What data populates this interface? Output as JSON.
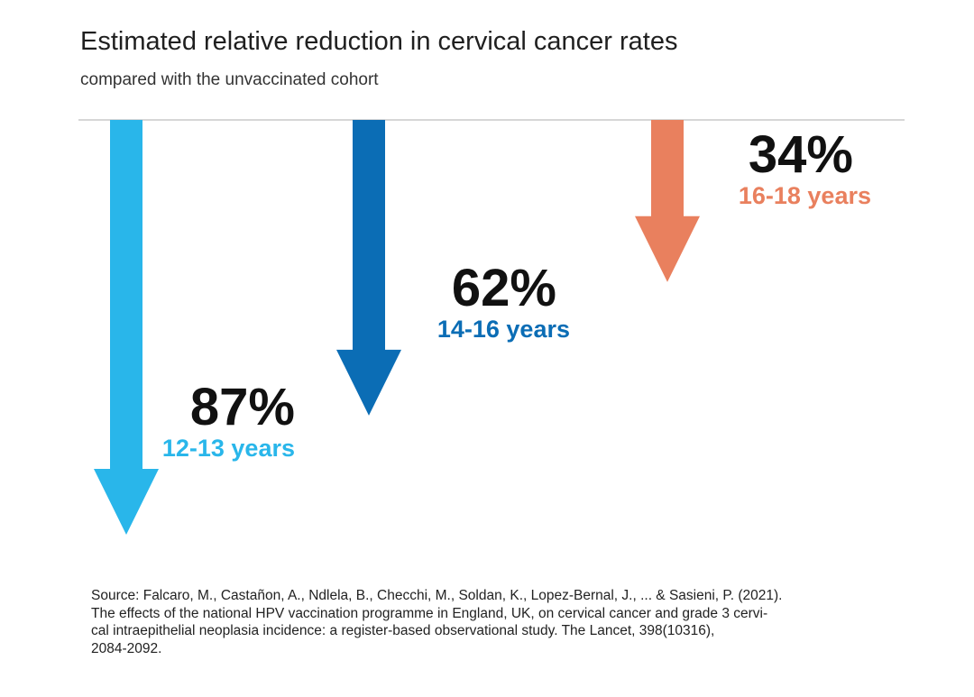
{
  "title": "Estimated relative reduction in cervical cancer rates",
  "subtitle": "compared with the unvaccinated cohort",
  "chart_data": {
    "type": "bar",
    "orientation": "downward-arrows",
    "title": "Estimated relative reduction in cervical cancer rates",
    "subtitle": "compared with the unvaccinated cohort",
    "categories": [
      "12-13 years",
      "14-16 years",
      "16-18 years"
    ],
    "values": [
      87,
      62,
      34
    ],
    "value_labels": [
      "87%",
      "62%",
      "34%"
    ],
    "unit": "%",
    "colors": [
      "#29B6EA",
      "#0B6DB5",
      "#E9805E"
    ],
    "baseline_color": "#C8C8C8",
    "ylim": [
      0,
      100
    ],
    "grid": false
  },
  "source": {
    "lines": [
      "Source: Falcaro, M., Castañon, A., Ndlela, B., Checchi, M., Soldan, K., Lopez-Bernal, J., ... & Sasieni, P. (2021).",
      "The effects of the national HPV vaccination programme in England, UK, on cervical cancer and grade 3 cervi-",
      "cal intraepithelial neoplasia incidence: a register-based observational study. The Lancet, 398(10316),",
      "2084-2092."
    ]
  }
}
